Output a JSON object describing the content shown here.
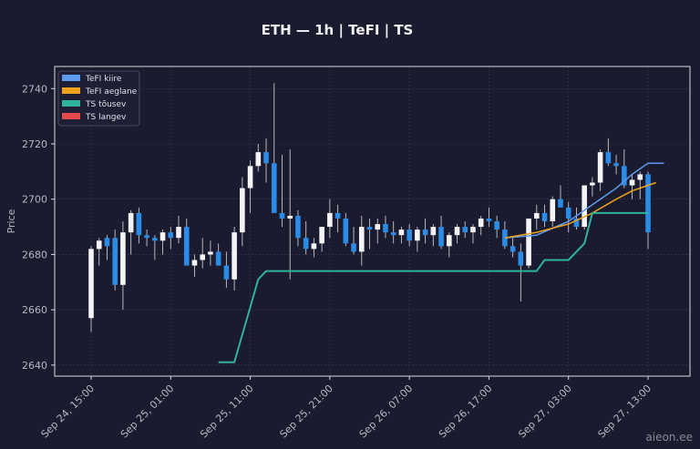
{
  "chart_data": {
    "type": "candlestick",
    "title": "ETH — 1h  |  TeFI  |  TS",
    "ylabel": "Price",
    "ylim": [
      2636,
      2748
    ],
    "yticks": [
      2640,
      2660,
      2680,
      2700,
      2720,
      2740
    ],
    "xticks": [
      "Sep 24, 15:00",
      "Sep 25, 01:00",
      "Sep 25, 11:00",
      "Sep 25, 21:00",
      "Sep 26, 07:00",
      "Sep 26, 17:00",
      "Sep 27, 03:00",
      "Sep 27, 13:00"
    ],
    "grid": true,
    "legend_position": "top-left",
    "legend": [
      {
        "label": "TeFI kiire",
        "color": "#5b9cf0"
      },
      {
        "label": "TeFI aeglane",
        "color": "#f0a21e"
      },
      {
        "label": "TS tõusev",
        "color": "#2fb39a"
      },
      {
        "label": "TS langev",
        "color": "#e5484d"
      }
    ],
    "candles_ohlc": [
      [
        2657,
        2683,
        2652,
        2682
      ],
      [
        2682,
        2686,
        2676,
        2685
      ],
      [
        2686,
        2687,
        2678,
        2683
      ],
      [
        2686,
        2689,
        2667,
        2669
      ],
      [
        2669,
        2692,
        2660,
        2688
      ],
      [
        2688,
        2696,
        2680,
        2695
      ],
      [
        2695,
        2697,
        2684,
        2687
      ],
      [
        2687,
        2689,
        2683,
        2686
      ],
      [
        2686,
        2687,
        2678,
        2685
      ],
      [
        2685,
        2689,
        2680,
        2688
      ],
      [
        2688,
        2690,
        2682,
        2686
      ],
      [
        2686,
        2694,
        2684,
        2690
      ],
      [
        2690,
        2693,
        2676,
        2676
      ],
      [
        2676,
        2680,
        2672,
        2678
      ],
      [
        2678,
        2686,
        2675,
        2680
      ],
      [
        2680,
        2685,
        2676,
        2681
      ],
      [
        2681,
        2684,
        2677,
        2676
      ],
      [
        2676,
        2681,
        2668,
        2671
      ],
      [
        2671,
        2690,
        2667,
        2688
      ],
      [
        2688,
        2708,
        2683,
        2704
      ],
      [
        2704,
        2714,
        2695,
        2712
      ],
      [
        2712,
        2720,
        2710,
        2717
      ],
      [
        2717,
        2722,
        2706,
        2713
      ],
      [
        2713,
        2742,
        2696,
        2695
      ],
      [
        2695,
        2716,
        2690,
        2693
      ],
      [
        2693,
        2718,
        2671,
        2694
      ],
      [
        2694,
        2696,
        2683,
        2686
      ],
      [
        2686,
        2692,
        2680,
        2682
      ],
      [
        2682,
        2686,
        2679,
        2684
      ],
      [
        2684,
        2690,
        2681,
        2690
      ],
      [
        2690,
        2700,
        2686,
        2695
      ],
      [
        2695,
        2698,
        2688,
        2693
      ],
      [
        2693,
        2695,
        2683,
        2684
      ],
      [
        2684,
        2690,
        2680,
        2681
      ],
      [
        2681,
        2694,
        2676,
        2690
      ],
      [
        2690,
        2693,
        2682,
        2689
      ],
      [
        2689,
        2693,
        2684,
        2691
      ],
      [
        2691,
        2694,
        2686,
        2688
      ],
      [
        2688,
        2692,
        2684,
        2687
      ],
      [
        2687,
        2690,
        2684,
        2689
      ],
      [
        2689,
        2691,
        2683,
        2685
      ],
      [
        2685,
        2690,
        2681,
        2689
      ],
      [
        2689,
        2693,
        2684,
        2687
      ],
      [
        2687,
        2691,
        2683,
        2690
      ],
      [
        2690,
        2694,
        2682,
        2683
      ],
      [
        2683,
        2688,
        2679,
        2687
      ],
      [
        2687,
        2691,
        2684,
        2690
      ],
      [
        2690,
        2692,
        2686,
        2688
      ],
      [
        2688,
        2691,
        2684,
        2690
      ],
      [
        2690,
        2694,
        2687,
        2693
      ],
      [
        2693,
        2697,
        2690,
        2692
      ],
      [
        2692,
        2694,
        2686,
        2689
      ],
      [
        2689,
        2692,
        2682,
        2683
      ],
      [
        2683,
        2686,
        2679,
        2681
      ],
      [
        2681,
        2684,
        2663,
        2676
      ],
      [
        2676,
        2693,
        2675,
        2693
      ],
      [
        2693,
        2698,
        2689,
        2695
      ],
      [
        2695,
        2698,
        2690,
        2692
      ],
      [
        2692,
        2701,
        2690,
        2700
      ],
      [
        2700,
        2705,
        2698,
        2697
      ],
      [
        2697,
        2699,
        2688,
        2693
      ],
      [
        2693,
        2697,
        2689,
        2690
      ],
      [
        2690,
        2704,
        2689,
        2705
      ],
      [
        2705,
        2708,
        2701,
        2706
      ],
      [
        2706,
        2718,
        2703,
        2717
      ],
      [
        2717,
        2722,
        2712,
        2713
      ],
      [
        2713,
        2716,
        2709,
        2712
      ],
      [
        2712,
        2718,
        2704,
        2705
      ],
      [
        2705,
        2709,
        2700,
        2707
      ],
      [
        2707,
        2710,
        2700,
        2709
      ],
      [
        2709,
        2710,
        2682,
        2688
      ]
    ],
    "series": [
      {
        "name": "TeFI kiire",
        "points": [
          [
            52,
            2686
          ],
          [
            56,
            2687
          ],
          [
            60,
            2692
          ],
          [
            62,
            2696
          ],
          [
            64,
            2700
          ],
          [
            66,
            2704
          ],
          [
            68,
            2709
          ],
          [
            70,
            2713
          ],
          [
            72,
            2713
          ]
        ]
      },
      {
        "name": "TeFI aeglane",
        "points": [
          [
            52,
            2686
          ],
          [
            56,
            2688
          ],
          [
            60,
            2691
          ],
          [
            63,
            2695
          ],
          [
            66,
            2700
          ],
          [
            68,
            2703
          ],
          [
            70,
            2705
          ],
          [
            71,
            2706
          ]
        ]
      },
      {
        "name": "TS tõusev",
        "points": [
          [
            16,
            2641
          ],
          [
            18,
            2641
          ],
          [
            20,
            2661
          ],
          [
            21,
            2671
          ],
          [
            22,
            2674
          ],
          [
            56,
            2674
          ],
          [
            57,
            2678
          ],
          [
            60,
            2678
          ],
          [
            62,
            2684
          ],
          [
            63,
            2695
          ],
          [
            70,
            2695
          ]
        ]
      }
    ]
  },
  "watermark": "aieon.ee"
}
